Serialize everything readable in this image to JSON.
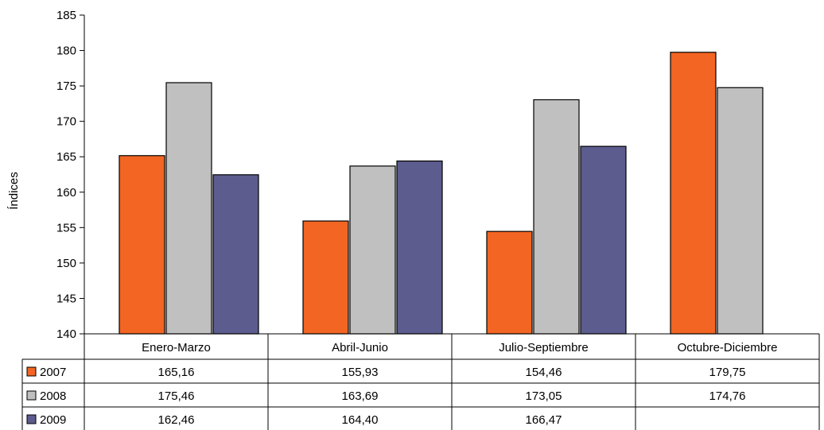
{
  "chart_data": {
    "type": "bar",
    "ylabel": "Índices",
    "ylim": [
      140,
      185
    ],
    "yticks": [
      140,
      145,
      150,
      155,
      160,
      165,
      170,
      175,
      180,
      185
    ],
    "categories": [
      "Enero-Marzo",
      "Abril-Junio",
      "Julio-Septiembre",
      "Octubre-Diciembre"
    ],
    "legend_placement": "left-in-table",
    "series": [
      {
        "name": "2007",
        "color": "#f26522",
        "values": [
          165.16,
          155.93,
          154.46,
          179.75
        ],
        "labels": [
          "165,16",
          "155,93",
          "154,46",
          "179,75"
        ]
      },
      {
        "name": "2008",
        "color": "#c0c0c0",
        "values": [
          175.46,
          163.69,
          173.05,
          174.76
        ],
        "labels": [
          "175,46",
          "163,69",
          "173,05",
          "174,76"
        ]
      },
      {
        "name": "2009",
        "color": "#5c5c8e",
        "values": [
          162.46,
          164.4,
          166.47,
          null
        ],
        "labels": [
          "162,46",
          "164,40",
          "166,47",
          ""
        ]
      }
    ]
  }
}
